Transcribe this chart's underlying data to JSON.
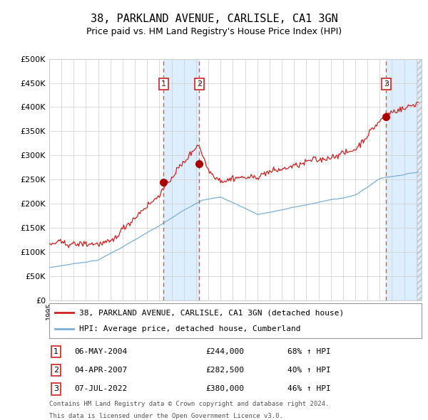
{
  "title": "38, PARKLAND AVENUE, CARLISLE, CA1 3GN",
  "subtitle": "Price paid vs. HM Land Registry's House Price Index (HPI)",
  "legend_line1": "38, PARKLAND AVENUE, CARLISLE, CA1 3GN (detached house)",
  "legend_line2": "HPI: Average price, detached house, Cumberland",
  "footer1": "Contains HM Land Registry data © Crown copyright and database right 2024.",
  "footer2": "This data is licensed under the Open Government Licence v3.0.",
  "transactions": [
    {
      "num": 1,
      "date": "06-MAY-2004",
      "price": 244000,
      "pct": "68%",
      "dir": "↑"
    },
    {
      "num": 2,
      "date": "04-APR-2007",
      "price": 282500,
      "pct": "40%",
      "dir": "↑"
    },
    {
      "num": 3,
      "date": "07-JUL-2022",
      "price": 380000,
      "pct": "46%",
      "dir": "↑"
    }
  ],
  "transaction_dates_decimal": [
    2004.35,
    2007.26,
    2022.52
  ],
  "transaction_prices": [
    244000,
    282500,
    380000
  ],
  "vline_color": "#e05050",
  "shade_color": "#ddeeff",
  "shade1_x1": 2004.35,
  "shade1_x2": 2007.26,
  "shade2_x1": 2022.52,
  "shade2_x2": 2025.42,
  "hpi_color": "#7bafd4",
  "price_color": "#cc2222",
  "dot_color": "#aa0000",
  "ylim_max": 500000,
  "xlim_min": 1995.0,
  "xlim_max": 2025.42,
  "yticks": [
    0,
    50000,
    100000,
    150000,
    200000,
    250000,
    300000,
    350000,
    400000,
    450000,
    500000
  ],
  "background_color": "#ffffff",
  "grid_color": "#cccccc",
  "box_color_red": "#cc2222",
  "title_fontsize": 11,
  "subtitle_fontsize": 9
}
